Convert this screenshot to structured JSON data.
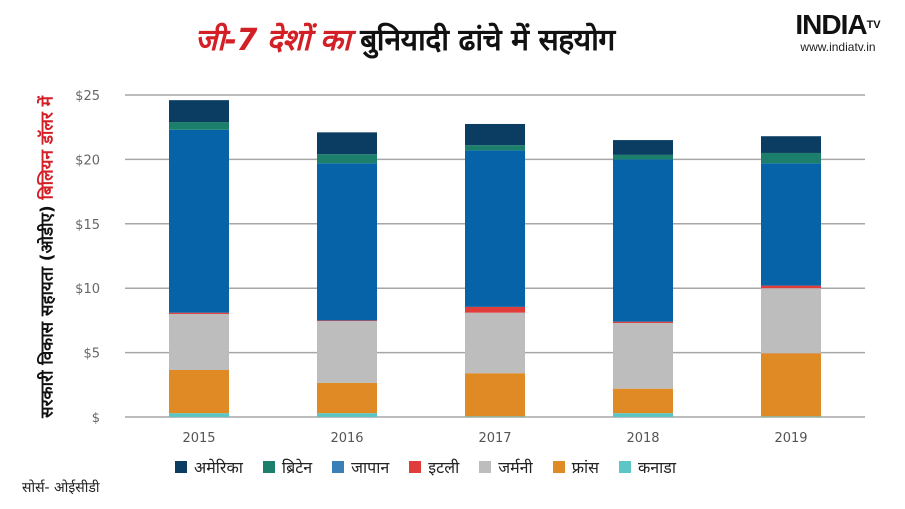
{
  "header": {
    "title_red": "जी-7 देशों का",
    "title_black": "बुनियादी ढांचे में सहयोग",
    "logo_text": "INDIATV",
    "logo_url": "www.indiatv.in"
  },
  "source": "सोर्स- ओईसीडी",
  "chart_data": {
    "type": "bar",
    "stacked": true,
    "title": "जी-7 देशों का बुनियादी ढांचे में सहयोग",
    "ylabel_black": "सरकारी विकास सहायता (ओडीए)",
    "ylabel_red": "बिलियन डॉलर में",
    "xlabel": "",
    "ylim": [
      0,
      25
    ],
    "yticks": [
      0,
      5,
      10,
      15,
      20,
      25
    ],
    "ytick_labels": [
      "$",
      "$5",
      "$10",
      "$15",
      "$20",
      "$25"
    ],
    "grid": true,
    "legend_position": "bottom",
    "categories": [
      "2015",
      "2016",
      "2017",
      "2018",
      "2019"
    ],
    "series": [
      {
        "name": "कनाडा",
        "color": "#5cc6c6",
        "values": [
          0.3,
          0.3,
          0.05,
          0.3,
          0.05
        ]
      },
      {
        "name": "फ्रांस",
        "color": "#e08a26",
        "values": [
          3.35,
          2.35,
          3.35,
          1.9,
          4.9
        ]
      },
      {
        "name": "जर्मनी",
        "color": "#bdbdbd",
        "values": [
          4.35,
          4.8,
          4.7,
          5.1,
          5.05
        ]
      },
      {
        "name": "इटली",
        "color": "#e03c3c",
        "values": [
          0.1,
          0.05,
          0.45,
          0.1,
          0.2
        ]
      },
      {
        "name": "जापान",
        "color": "#0663a8",
        "values": [
          14.2,
          12.2,
          12.15,
          12.6,
          9.5
        ]
      },
      {
        "name": "ब्रिटेन",
        "color": "#1b7f6b",
        "values": [
          0.6,
          0.7,
          0.4,
          0.35,
          0.8
        ]
      },
      {
        "name": "अमेरिका",
        "color": "#0b3c62",
        "values": [
          1.7,
          1.7,
          1.65,
          1.15,
          1.3
        ]
      }
    ],
    "legend_order": [
      "अमेरिका",
      "ब्रिटेन",
      "जापान",
      "इटली",
      "जर्मनी",
      "फ्रांस",
      "कनाडा"
    ],
    "legend_colors": [
      "#0b3c62",
      "#1b7f6b",
      "#3a7fb5",
      "#e03c3c",
      "#bdbdbd",
      "#e08a26",
      "#5cc6c6"
    ]
  }
}
